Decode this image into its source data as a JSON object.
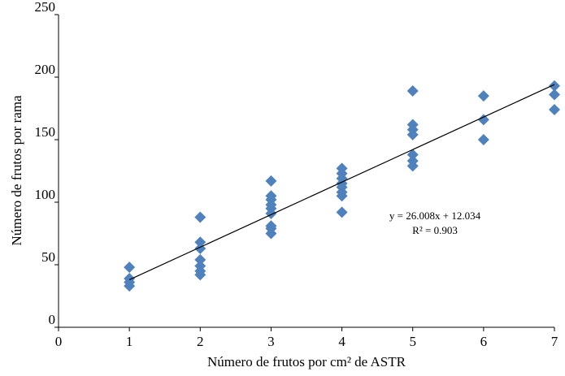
{
  "chart_data": {
    "type": "scatter",
    "x_label": "Número de frutos por cm² de ASTR",
    "y_label": "Número de frutos por rama",
    "series": [
      {
        "color": "#4f81bd",
        "x": [
          1,
          1,
          1,
          1,
          2,
          2,
          2,
          2,
          2,
          2,
          2,
          3,
          3,
          3,
          3,
          3,
          3,
          3,
          3,
          3,
          4,
          4,
          4,
          4,
          4,
          4,
          4,
          4,
          5,
          5,
          5,
          5,
          5,
          5,
          5,
          6,
          6,
          6,
          7,
          7,
          7
        ],
        "values": [
          48,
          39,
          36,
          33,
          88,
          68,
          63,
          54,
          49,
          45,
          42,
          117,
          105,
          102,
          98,
          95,
          91,
          81,
          79,
          75,
          127,
          123,
          119,
          115,
          112,
          108,
          105,
          92,
          189,
          162,
          158,
          154,
          138,
          133,
          129,
          185,
          166,
          150,
          193,
          186,
          174
        ]
      }
    ],
    "trendline": {
      "slope": 26.008,
      "intercept": 12.034,
      "equation": "y = 26.008x + 12.034",
      "r2": "R² = 0.903"
    },
    "xlim": [
      0,
      7
    ],
    "xticks": [
      0,
      1,
      2,
      3,
      4,
      5,
      6,
      7
    ],
    "ylim": [
      0,
      250
    ],
    "yticks": [
      0,
      50,
      100,
      150,
      200,
      250
    ],
    "grid": false
  }
}
